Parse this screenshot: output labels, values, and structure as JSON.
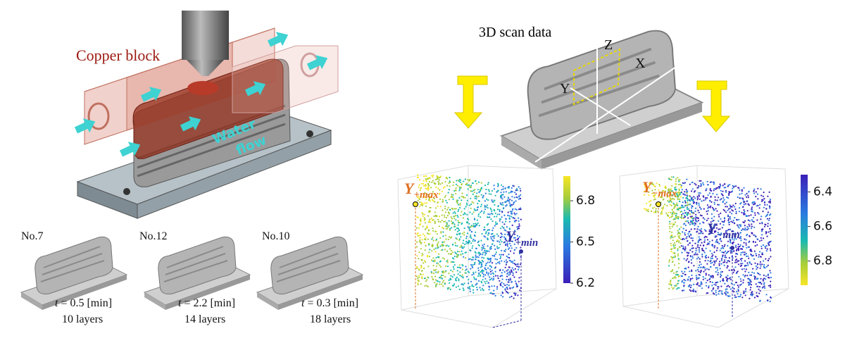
{
  "illustration": {
    "copper_label": "Copper block",
    "water_label": [
      "Water",
      "flow"
    ]
  },
  "scan": {
    "title": "3D scan data",
    "axes": {
      "z": "Z",
      "x": "X",
      "y": "Y"
    }
  },
  "samples": [
    {
      "name": "No.7",
      "time": {
        "var": "t",
        "rest": "= 0.5 [min]"
      },
      "layers": "10 layers"
    },
    {
      "name": "No.12",
      "time": {
        "var": "t",
        "rest": "= 2.2 [min]"
      },
      "layers": "14 layers"
    },
    {
      "name": "No.10",
      "time": {
        "var": "t",
        "rest": "= 0.3 [min]"
      },
      "layers": "18 layers"
    }
  ],
  "plots": [
    {
      "max_label": {
        "base": "Y",
        "sub": "+max"
      },
      "min_label": {
        "base": "Y",
        "sub": "+min"
      },
      "colorbar": {
        "lim": [
          6.2,
          6.98
        ],
        "ticks": [
          6.8,
          6.5,
          6.2
        ]
      }
    },
    {
      "max_label": {
        "base": "Y",
        "sub": "−max"
      },
      "min_label": {
        "base": "Y",
        "sub": "−min"
      },
      "colorbar": {
        "lim": [
          6.94,
          6.3
        ],
        "ticks": [
          6.4,
          6.6,
          6.8
        ]
      }
    }
  ]
}
